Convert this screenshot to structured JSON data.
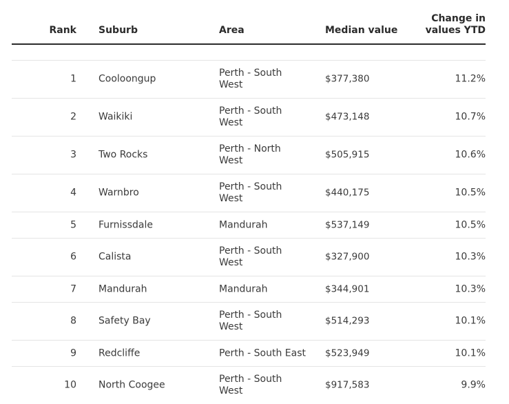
{
  "table": {
    "headers": {
      "rank": "Rank",
      "suburb": "Suburb",
      "area": "Area",
      "median": "Median value",
      "change_line1": "Change in",
      "change_line2": "values YTD"
    },
    "rows": [
      {
        "rank": "1",
        "suburb": "Cooloongup",
        "area_line1": "Perth - South",
        "area_line2": "West",
        "median": "$377,380",
        "change": "11.2%"
      },
      {
        "rank": "2",
        "suburb": "Waikiki",
        "area_line1": "Perth - South",
        "area_line2": "West",
        "median": "$473,148",
        "change": "10.7%"
      },
      {
        "rank": "3",
        "suburb": "Two Rocks",
        "area_line1": "Perth - North",
        "area_line2": "West",
        "median": "$505,915",
        "change": "10.6%"
      },
      {
        "rank": "4",
        "suburb": "Warnbro",
        "area_line1": "Perth - South",
        "area_line2": "West",
        "median": "$440,175",
        "change": "10.5%"
      },
      {
        "rank": "5",
        "suburb": "Furnissdale",
        "area_line1": "Mandurah",
        "area_line2": "",
        "median": "$537,149",
        "change": "10.5%"
      },
      {
        "rank": "6",
        "suburb": "Calista",
        "area_line1": "Perth - South",
        "area_line2": "West",
        "median": "$327,900",
        "change": "10.3%"
      },
      {
        "rank": "7",
        "suburb": "Mandurah",
        "area_line1": "Mandurah",
        "area_line2": "",
        "median": "$344,901",
        "change": "10.3%"
      },
      {
        "rank": "8",
        "suburb": "Safety Bay",
        "area_line1": "Perth - South",
        "area_line2": "West",
        "median": "$514,293",
        "change": "10.1%"
      },
      {
        "rank": "9",
        "suburb": "Redcliffe",
        "area_line1": "Perth - South East",
        "area_line2": "",
        "median": "$523,949",
        "change": "10.1%"
      },
      {
        "rank": "10",
        "suburb": "North Coogee",
        "area_line1": "Perth - South",
        "area_line2": "West",
        "median": "$917,583",
        "change": "9.9%"
      }
    ]
  }
}
